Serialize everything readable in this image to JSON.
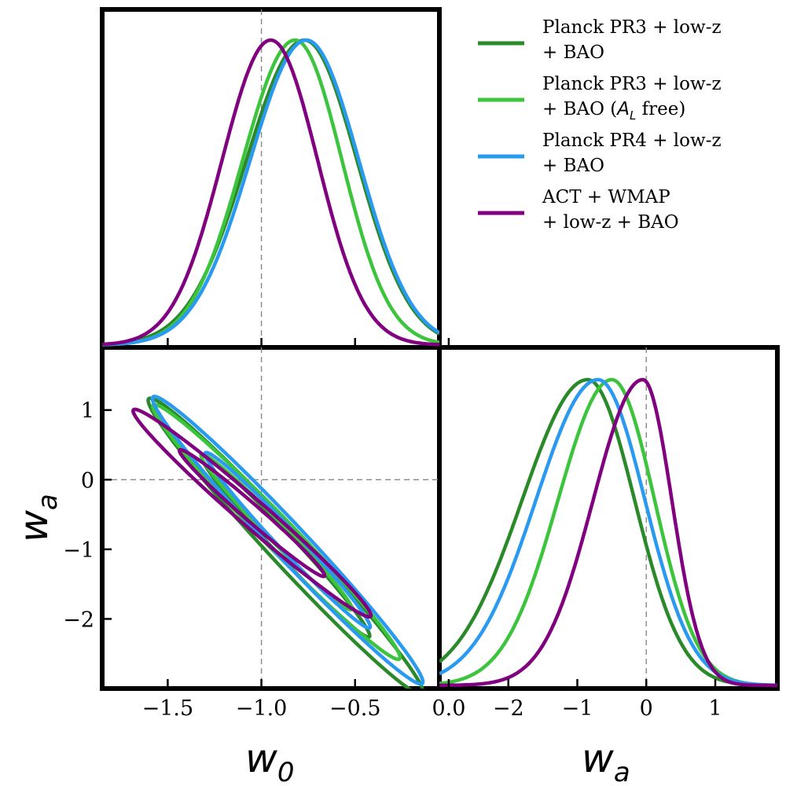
{
  "chart_data": {
    "type": "triangle",
    "reference": {
      "w0": -1.0,
      "wa": 0.0
    },
    "series": [
      {
        "name": "Planck PR3 + low-z + BAO",
        "color": "#2a8a2a",
        "w0_peak": -0.77,
        "w0_sigma": 0.29,
        "w0_sigma_left": 0.31,
        "w0_sigma_right": 0.28,
        "wa_peak": -0.85,
        "wa_sigma_left": 0.95,
        "wa_sigma_right": 0.68,
        "corr": -0.985
      },
      {
        "name": "Planck PR3 + low-z + BAO (A_L free)",
        "color": "#3cc43c",
        "w0_peak": -0.82,
        "w0_sigma_left": 0.28,
        "w0_sigma_right": 0.25,
        "wa_peak": -0.5,
        "wa_sigma_left": 0.78,
        "wa_sigma_right": 0.62,
        "corr": -0.985
      },
      {
        "name": "Planck PR4 + low-z + BAO",
        "color": "#2a9af0",
        "w0_peak": -0.76,
        "w0_sigma_left": 0.3,
        "w0_sigma_right": 0.28,
        "wa_peak": -0.7,
        "wa_sigma_left": 0.9,
        "wa_sigma_right": 0.68,
        "corr": -0.985
      },
      {
        "name": "ACT + WMAP + low-z + BAO",
        "color": "#800080",
        "w0_peak": -0.95,
        "w0_sigma_left": 0.26,
        "w0_sigma_right": 0.25,
        "wa_peak": -0.05,
        "wa_sigma_left": 0.72,
        "wa_sigma_right": 0.42,
        "corr": -0.985
      }
    ],
    "panels": {
      "w0_1d": {
        "xlim": [
          -1.85,
          -0.05
        ]
      },
      "w0_wa": {
        "xlim": [
          -1.85,
          -0.05
        ],
        "ylim": [
          -3.0,
          1.9
        ],
        "xticks": [
          -1.5,
          -1.0,
          -0.5,
          0.0
        ],
        "yticks": [
          1,
          0,
          -1,
          -2
        ]
      },
      "wa_1d": {
        "xlim": [
          -3.0,
          1.9
        ],
        "xticks": [
          -2,
          -1,
          0,
          1
        ]
      }
    }
  },
  "labels": {
    "x_w0": "w",
    "x_w0_sub": "0",
    "y_wa": "w",
    "y_wa_sub": "a",
    "x_wa": "w",
    "x_wa_sub": "a"
  },
  "tick_labels": {
    "w0": [
      "−1.5",
      "−1.0",
      "−0.5",
      "0.0"
    ],
    "wa_y": [
      "1",
      "0",
      "−1",
      "−2"
    ],
    "wa_x": [
      "−2",
      "−1",
      "0",
      "1"
    ]
  },
  "legend": [
    {
      "line1": "Planck PR3 + low-z",
      "line2": "+ BAO",
      "color": "#2a8a2a"
    },
    {
      "line1": "Planck PR3 + low-z",
      "line2_pre": "+ BAO (",
      "line2_sym": "A",
      "line2_sub": "L",
      "line2_post": " free)",
      "color": "#3cc43c"
    },
    {
      "line1": "Planck PR4 + low-z",
      "line2": "+ BAO",
      "color": "#2a9af0"
    },
    {
      "line1": "ACT + WMAP",
      "line2": "+ low-z + BAO",
      "color": "#800080"
    }
  ]
}
